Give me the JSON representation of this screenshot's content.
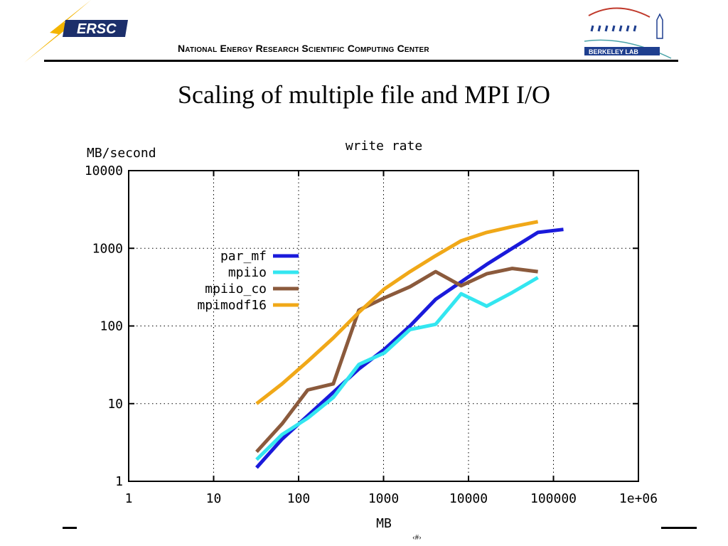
{
  "header": {
    "org_name": "National Energy Research Scientific Computing Center",
    "nersc_logo_text": "ERSC",
    "berkeley_logo_text": "BERKELEY LAB"
  },
  "slide": {
    "title": "Scaling of multiple file and MPI I/O",
    "page_number": "‹#›"
  },
  "colors": {
    "par_mf": "#1a1adb",
    "mpiio": "#33e6f0",
    "mpiio_co": "#8b5a3c",
    "mpimodf16": "#f0a818",
    "nersc_yellow": "#f4b400",
    "nersc_navy": "#1c2f6b",
    "berkeley_blue": "#1f3f8f"
  },
  "chart_data": {
    "type": "line",
    "title": "write rate",
    "xlabel": "MB",
    "ylabel": "MB/second",
    "xscale": "log",
    "yscale": "log",
    "xlim": [
      1,
      1000000
    ],
    "ylim": [
      1,
      10000
    ],
    "x_ticks": [
      "1",
      "10",
      "100",
      "1000",
      "10000",
      "100000",
      "1e+06"
    ],
    "y_ticks": [
      "1",
      "10",
      "100",
      "1000",
      "10000"
    ],
    "grid": true,
    "legend_position": "left",
    "series": [
      {
        "name": "par_mf",
        "x": [
          32,
          64,
          128,
          256,
          512,
          1024,
          2048,
          4096,
          8192,
          16384,
          32768,
          65536,
          131072
        ],
        "y": [
          1.5,
          3.5,
          7,
          14,
          28,
          50,
          100,
          220,
          370,
          620,
          1000,
          1600,
          1750
        ]
      },
      {
        "name": "mpiio",
        "x": [
          32,
          64,
          128,
          256,
          512,
          1024,
          2048,
          4096,
          8192,
          16384,
          32768,
          65536
        ],
        "y": [
          1.9,
          4,
          6.5,
          12,
          32,
          45,
          90,
          105,
          260,
          180,
          270,
          420
        ]
      },
      {
        "name": "mpiio_co",
        "x": [
          32,
          64,
          128,
          256,
          512,
          1024,
          2048,
          4096,
          8192,
          16384,
          32768,
          65536
        ],
        "y": [
          2.4,
          5.5,
          15,
          18,
          160,
          230,
          320,
          500,
          330,
          470,
          550,
          500
        ]
      },
      {
        "name": "mpimodf16",
        "x": [
          32,
          64,
          128,
          256,
          512,
          1024,
          2048,
          4096,
          8192,
          16384,
          32768,
          65536
        ],
        "y": [
          10,
          18,
          35,
          70,
          150,
          300,
          500,
          800,
          1250,
          1600,
          1900,
          2200
        ]
      }
    ]
  }
}
